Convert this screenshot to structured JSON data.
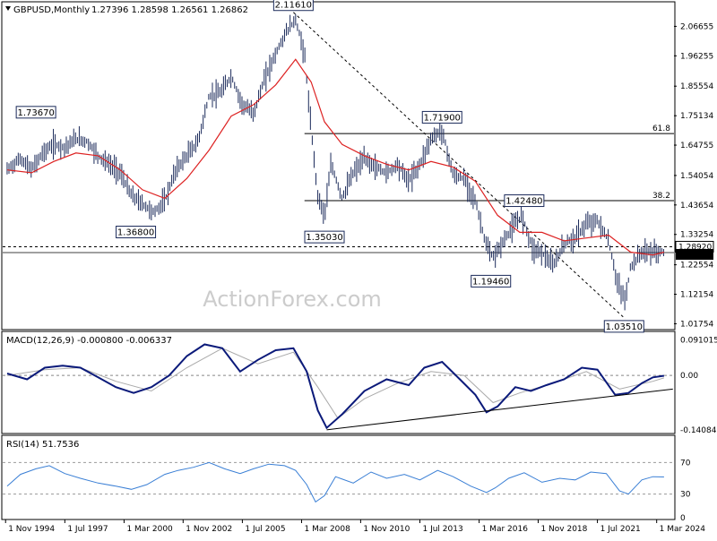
{
  "header": {
    "symbol_label": "GBPUSD,Monthly",
    "ohlc": "1.27396 1.28598 1.26561 1.26862"
  },
  "watermark": "ActionForex.com",
  "colors": {
    "price_bars": "#1b2a5a",
    "sma": "#dd2222",
    "macd": "#0b1a7a",
    "signal": "#aaaaaa",
    "rsi": "#3a7fd5",
    "current_price_bg": "#000000"
  },
  "chart_data": [
    {
      "type": "line",
      "name": "price",
      "y_axis_ticks": [
        "2.06655",
        "1.96255",
        "1.85554",
        "1.75134",
        "1.64755",
        "1.54054",
        "1.43654",
        "1.33254",
        "1.22554",
        "1.12154",
        "1.01754"
      ],
      "ylim": [
        1.0,
        2.15
      ],
      "price_tags": {
        "resistance": "1.28920",
        "current": "1.26862"
      },
      "annotations": [
        {
          "label": "2.11610",
          "x": 2007.8,
          "y": 2.1161
        },
        {
          "label": "1.73670",
          "x": 1996.2,
          "y": 1.7367
        },
        {
          "label": "1.36800",
          "x": 2000.7,
          "y": 1.368
        },
        {
          "label": "1.35030",
          "x": 2009.2,
          "y": 1.3503
        },
        {
          "label": "1.71900",
          "x": 2014.5,
          "y": 1.719
        },
        {
          "label": "1.19460",
          "x": 2016.7,
          "y": 1.1946
        },
        {
          "label": "1.42480",
          "x": 2018.2,
          "y": 1.4248
        },
        {
          "label": "1.03510",
          "x": 2022.7,
          "y": 1.0351
        }
      ],
      "fib_levels": [
        {
          "label": "61.8",
          "y": 1.6884
        },
        {
          "label": "38.2",
          "y": 1.4516
        }
      ],
      "levels": {
        "dashed": 1.2892,
        "solid": 1.26862
      },
      "series": [
        {
          "name": "price",
          "x": [
            1994.9,
            1995.5,
            1996.0,
            1996.5,
            1997.0,
            1997.5,
            1998.0,
            1998.5,
            1999.0,
            1999.5,
            2000.0,
            2000.5,
            2001.0,
            2001.5,
            2002.0,
            2002.5,
            2003.0,
            2003.5,
            2004.0,
            2004.5,
            2005.0,
            2005.5,
            2006.0,
            2006.5,
            2007.0,
            2007.5,
            2007.9,
            2008.3,
            2008.6,
            2008.9,
            2009.2,
            2009.5,
            2010.0,
            2010.5,
            2011.0,
            2011.5,
            2012.0,
            2012.5,
            2013.0,
            2013.5,
            2014.0,
            2014.5,
            2015.0,
            2015.5,
            2016.0,
            2016.5,
            2016.8,
            2017.2,
            2017.6,
            2018.1,
            2018.6,
            2019.0,
            2019.5,
            2020.0,
            2020.5,
            2021.0,
            2021.5,
            2022.0,
            2022.4,
            2022.75,
            2023.0,
            2023.5,
            2024.0,
            2024.3,
            2024.5
          ],
          "y": [
            1.56,
            1.6,
            1.56,
            1.62,
            1.65,
            1.64,
            1.67,
            1.66,
            1.61,
            1.58,
            1.55,
            1.47,
            1.44,
            1.41,
            1.45,
            1.56,
            1.61,
            1.66,
            1.82,
            1.83,
            1.89,
            1.79,
            1.76,
            1.88,
            1.97,
            2.05,
            2.09,
            1.97,
            1.7,
            1.47,
            1.4,
            1.58,
            1.46,
            1.55,
            1.6,
            1.57,
            1.55,
            1.58,
            1.52,
            1.58,
            1.67,
            1.7,
            1.54,
            1.53,
            1.45,
            1.29,
            1.25,
            1.3,
            1.35,
            1.4,
            1.28,
            1.27,
            1.22,
            1.3,
            1.32,
            1.37,
            1.38,
            1.31,
            1.16,
            1.1,
            1.22,
            1.27,
            1.27,
            1.27,
            1.27
          ]
        },
        {
          "name": "sma",
          "x": [
            1994.9,
            1996.0,
            1997.0,
            1998.0,
            1999.0,
            2000.0,
            2001.0,
            2002.0,
            2003.0,
            2004.0,
            2005.0,
            2006.0,
            2007.0,
            2007.9,
            2008.6,
            2009.2,
            2010.0,
            2011.0,
            2012.0,
            2013.0,
            2014.0,
            2015.0,
            2016.0,
            2017.0,
            2018.0,
            2019.0,
            2020.0,
            2021.0,
            2022.0,
            2023.0,
            2024.0,
            2024.5
          ],
          "y": [
            1.56,
            1.55,
            1.59,
            1.62,
            1.61,
            1.56,
            1.49,
            1.46,
            1.53,
            1.63,
            1.75,
            1.79,
            1.86,
            1.95,
            1.87,
            1.73,
            1.65,
            1.61,
            1.58,
            1.56,
            1.59,
            1.57,
            1.52,
            1.4,
            1.34,
            1.34,
            1.31,
            1.32,
            1.33,
            1.27,
            1.26,
            1.27
          ]
        }
      ]
    },
    {
      "type": "line",
      "name": "MACD",
      "label": "MACD(12,26,9) -0.000800 -0.006337",
      "y_axis_ticks": [
        "0.091015",
        "0.00",
        "-0.140843"
      ],
      "zero_tag": "0.00",
      "ylim": [
        -0.145,
        0.095
      ],
      "series": [
        {
          "name": "macd",
          "x": [
            1994.9,
            1995.8,
            1996.6,
            1997.4,
            1998.2,
            1999.0,
            1999.8,
            2000.6,
            2001.4,
            2002.2,
            2003.0,
            2003.8,
            2004.6,
            2005.4,
            2006.2,
            2007.0,
            2007.8,
            2008.4,
            2008.9,
            2009.3,
            2010.0,
            2011.0,
            2012.0,
            2013.0,
            2013.7,
            2014.5,
            2015.3,
            2016.0,
            2016.5,
            2017.0,
            2017.8,
            2018.5,
            2019.2,
            2020.0,
            2020.8,
            2021.5,
            2022.3,
            2022.9,
            2023.5,
            2024.0,
            2024.5
          ],
          "y": [
            0.005,
            -0.01,
            0.02,
            0.025,
            0.02,
            -0.005,
            -0.03,
            -0.045,
            -0.03,
            0.0,
            0.05,
            0.08,
            0.07,
            0.01,
            0.04,
            0.065,
            0.07,
            0.01,
            -0.09,
            -0.135,
            -0.1,
            -0.04,
            -0.01,
            -0.025,
            0.02,
            0.035,
            -0.01,
            -0.05,
            -0.095,
            -0.08,
            -0.03,
            -0.04,
            -0.025,
            -0.01,
            0.02,
            0.015,
            -0.05,
            -0.045,
            -0.02,
            -0.005,
            -0.0008
          ]
        },
        {
          "name": "signal",
          "x": [
            1994.9,
            1996.6,
            1998.2,
            1999.8,
            2001.4,
            2003.0,
            2004.6,
            2006.2,
            2007.8,
            2008.9,
            2009.8,
            2011.0,
            2012.5,
            2014.0,
            2015.5,
            2016.8,
            2018.0,
            2019.5,
            2021.0,
            2022.5,
            2024.0,
            2024.5
          ],
          "y": [
            0.0,
            0.015,
            0.02,
            -0.015,
            -0.04,
            0.02,
            0.07,
            0.03,
            0.06,
            -0.03,
            -0.11,
            -0.06,
            -0.02,
            0.01,
            0.0,
            -0.07,
            -0.045,
            -0.02,
            0.01,
            -0.035,
            -0.015,
            -0.006337
          ]
        }
      ],
      "trendline": {
        "x": [
          2009.3,
          2024.9
        ],
        "y": [
          -0.14,
          -0.035
        ]
      }
    },
    {
      "type": "line",
      "name": "RSI",
      "label": "RSI(14) 51.7536",
      "y_axis_ticks": [
        "70",
        "30",
        "0"
      ],
      "ylim": [
        0,
        100
      ],
      "levels": [
        70,
        30
      ],
      "series": [
        {
          "name": "rsi",
          "x": [
            1994.9,
            1995.5,
            1996.2,
            1996.8,
            1997.5,
            1998.2,
            1999.0,
            1999.8,
            2000.5,
            2001.2,
            2002.0,
            2002.6,
            2003.3,
            2004.0,
            2004.7,
            2005.4,
            2006.0,
            2006.7,
            2007.4,
            2007.9,
            2008.4,
            2008.8,
            2009.2,
            2009.7,
            2010.5,
            2011.3,
            2012.0,
            2012.8,
            2013.5,
            2014.3,
            2015.0,
            2015.8,
            2016.5,
            2016.9,
            2017.5,
            2018.2,
            2019.0,
            2019.8,
            2020.5,
            2021.2,
            2021.9,
            2022.5,
            2022.9,
            2023.5,
            2024.0,
            2024.5
          ],
          "y": [
            40,
            55,
            62,
            66,
            56,
            50,
            44,
            40,
            36,
            42,
            55,
            60,
            64,
            70,
            62,
            56,
            62,
            68,
            66,
            60,
            42,
            20,
            28,
            52,
            44,
            58,
            50,
            55,
            48,
            60,
            52,
            40,
            32,
            38,
            50,
            57,
            45,
            50,
            48,
            58,
            56,
            34,
            30,
            48,
            52,
            51.75
          ]
        }
      ]
    }
  ],
  "x_axis_ticks": [
    {
      "label": "1 Nov 1994",
      "x": 1994.83
    },
    {
      "label": "1 Jul 1997",
      "x": 1997.5
    },
    {
      "label": "1 Mar 2000",
      "x": 2000.17
    },
    {
      "label": "1 Nov 2002",
      "x": 2002.83
    },
    {
      "label": "1 Jul 2005",
      "x": 2005.5
    },
    {
      "label": "1 Mar 2008",
      "x": 2008.17
    },
    {
      "label": "1 Nov 2010",
      "x": 2010.83
    },
    {
      "label": "1 Jul 2013",
      "x": 2013.5
    },
    {
      "label": "1 Mar 2016",
      "x": 2016.17
    },
    {
      "label": "1 Nov 2018",
      "x": 2018.83
    },
    {
      "label": "1 Jul 2021",
      "x": 2021.5
    },
    {
      "label": "1 Mar 2024",
      "x": 2024.17
    }
  ]
}
